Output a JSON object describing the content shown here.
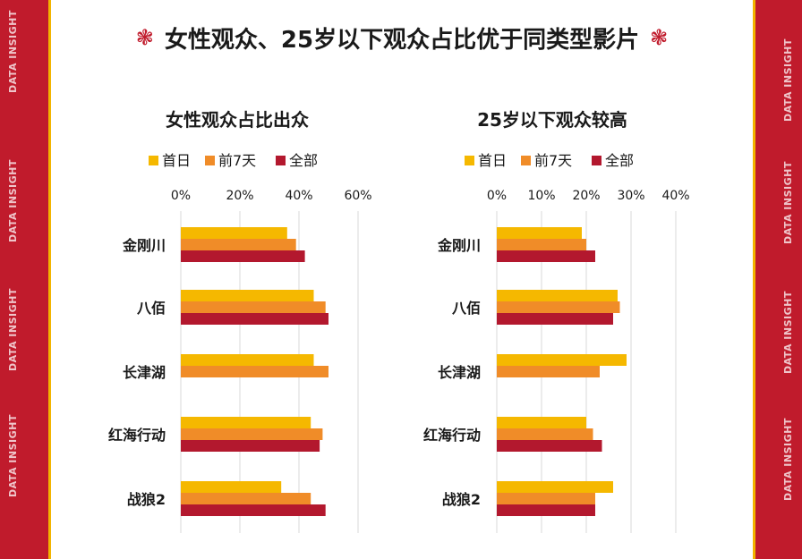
{
  "page": {
    "title": "女性观众、25岁以下观众占比优于同类型影片",
    "side_label": "DATA INSIGHT",
    "title_icon": "flower-icon"
  },
  "colors": {
    "frame_red": "#c01b2c",
    "frame_gold": "#f2b400",
    "series": [
      "#f5b800",
      "#f08c28",
      "#b3182e"
    ]
  },
  "chart_data": [
    {
      "type": "bar",
      "orientation": "horizontal",
      "title": "女性观众占比出众",
      "categories": [
        "金刚川",
        "八佰",
        "长津湖",
        "红海行动",
        "战狼2"
      ],
      "series": [
        {
          "name": "首日",
          "values": [
            36,
            45,
            45,
            44,
            34
          ]
        },
        {
          "name": "前7天",
          "values": [
            39,
            49,
            50,
            48,
            44
          ]
        },
        {
          "name": "全部",
          "values": [
            42,
            50,
            null,
            47,
            49
          ]
        }
      ],
      "xlim": [
        0,
        60
      ],
      "ticks": [
        "0%",
        "20%",
        "40%",
        "60%"
      ],
      "tick_values": [
        0,
        20,
        40,
        60
      ],
      "legend": "top",
      "grid": true
    },
    {
      "type": "bar",
      "orientation": "horizontal",
      "title": "25岁以下观众较高",
      "categories": [
        "金刚川",
        "八佰",
        "长津湖",
        "红海行动",
        "战狼2"
      ],
      "series": [
        {
          "name": "首日",
          "values": [
            19,
            27,
            29,
            20,
            26
          ]
        },
        {
          "name": "前7天",
          "values": [
            20,
            27.5,
            23,
            21.5,
            22
          ]
        },
        {
          "name": "全部",
          "values": [
            22,
            26,
            null,
            23.5,
            22
          ]
        }
      ],
      "xlim": [
        0,
        40
      ],
      "ticks": [
        "0%",
        "10%",
        "20%",
        "30%",
        "40%"
      ],
      "tick_values": [
        0,
        10,
        20,
        30,
        40
      ],
      "legend": "top",
      "grid": true
    }
  ]
}
